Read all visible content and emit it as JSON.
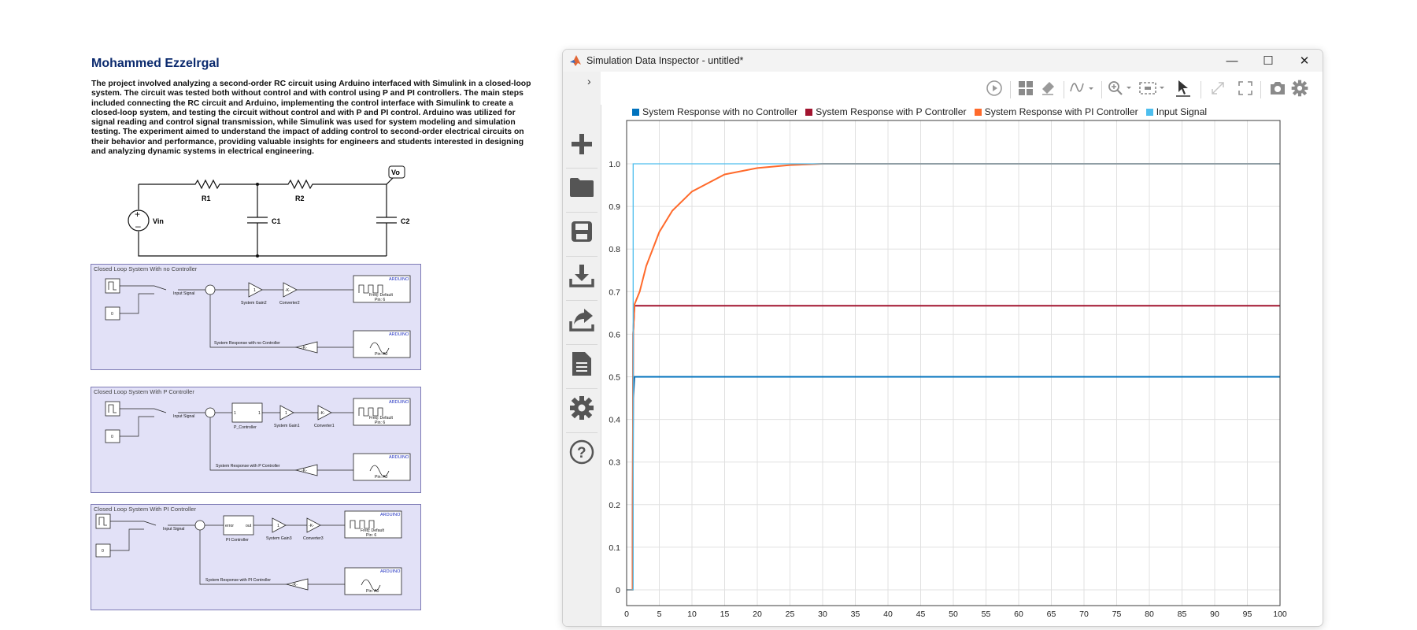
{
  "poster": {
    "author": "Mohammed Ezzelrgal",
    "description": "The project involved analyzing a second-order RC circuit using Arduino interfaced with Simulink in a closed-loop system. The circuit was tested both without control and with control using P and PI controllers. The main steps included connecting the RC circuit and Arduino, implementing the control interface with Simulink to create a closed-loop system, and testing the circuit without control and with P and PI control. Arduino was utilized for signal reading and control signal transmission, while Simulink was used for system modeling and simulation testing. The experiment aimed to understand the impact of adding control to second-order electrical circuits on their behavior and performance, providing valuable insights for engineers and students interested in designing and analyzing dynamic systems in electrical engineering.",
    "circuit": {
      "r1": "R1",
      "r2": "R2",
      "c1": "C1",
      "c2": "C2",
      "source": "Vin",
      "output": "Vo"
    },
    "diagrams": [
      {
        "title": "Closed Loop System With no Controller",
        "const_zero": "0",
        "switch_label": "Input Signal",
        "blocks": [
          {
            "inner": "1",
            "label": "System Gain2"
          },
          {
            "inner": "-K-",
            "label": "Converter2"
          }
        ],
        "pwm": {
          "header": "ARDUINO",
          "line1": "Freq: Default",
          "line2": "Pin: 6"
        },
        "analog": {
          "header": "ARDUINO",
          "pin": "Pin: A0"
        },
        "feedback_label": "System Response with no Controller",
        "feedback_gain": "-K-"
      },
      {
        "title": "Closed Loop System With P Controller",
        "const_zero": "0",
        "switch_label": "Input Signal",
        "controller": {
          "left": "1",
          "right": "1",
          "label": "P_Controller"
        },
        "blocks": [
          {
            "inner": "1",
            "label": "System Gain1"
          },
          {
            "inner": "-K-",
            "label": "Converter1"
          }
        ],
        "pwm": {
          "header": "ARDUINO",
          "line1": "Freq: Default",
          "line2": "Pin: 6"
        },
        "analog": {
          "header": "ARDUINO",
          "pin": "Pin: A0"
        },
        "feedback_label": "System Response with P Controller",
        "feedback_gain": "-K-"
      },
      {
        "title": "Closed Loop System With PI Controller",
        "const_zero": "0",
        "switch_label": "Input Signal",
        "controller": {
          "left": "error",
          "right": "out",
          "label": "PI Controller"
        },
        "blocks": [
          {
            "inner": "1",
            "label": "System Gain3"
          },
          {
            "inner": "-K-",
            "label": "Converter3"
          }
        ],
        "pwm": {
          "header": "ARDUINO",
          "line1": "Freq: Default",
          "line2": "Pin: 6"
        },
        "analog": {
          "header": "ARDUINO",
          "pin": "Pin: A0"
        },
        "feedback_label": "System Response with PI Controller",
        "feedback_gain": "-K-"
      }
    ]
  },
  "window": {
    "title": "Simulation Data Inspector - untitled*",
    "controls": {
      "minimize": "—",
      "maximize": "☐",
      "close": "✕"
    },
    "sidebar": {
      "expand_icon": "chevron-right-icon",
      "buttons": [
        "plus-icon",
        "folder-icon",
        "save-icon",
        "download-icon",
        "share-icon",
        "document-icon",
        "gear-icon",
        "help-icon"
      ]
    },
    "toolbar": [
      "play-icon",
      "layout-grid-icon",
      "eraser-icon",
      "signal-style-icon",
      "zoom-icon",
      "fit-view-icon",
      "cursor-icon",
      "expand-icon",
      "fullscreen-icon",
      "camera-icon",
      "settings-icon"
    ]
  },
  "chart_data": {
    "type": "line",
    "title": "",
    "xlabel": "",
    "ylabel": "",
    "xlim": [
      0,
      100
    ],
    "ylim": [
      0,
      1
    ],
    "grid": true,
    "legend_position": "top",
    "x_ticks": [
      0,
      5,
      10,
      15,
      20,
      25,
      30,
      35,
      40,
      45,
      50,
      55,
      60,
      65,
      70,
      75,
      80,
      85,
      90,
      95,
      100
    ],
    "y_ticks": [
      "0",
      "0.1",
      "0.2",
      "0.3",
      "0.4",
      "0.5",
      "0.6",
      "0.7",
      "0.8",
      "0.9",
      "1.0"
    ],
    "series": [
      {
        "name": "System Response with no Controller",
        "color": "#0072bd",
        "x": [
          0,
          0.9,
          1.0,
          1.2,
          20,
          40,
          60,
          80,
          100
        ],
        "values": [
          0,
          0,
          0.45,
          0.5,
          0.5,
          0.5,
          0.5,
          0.5,
          0.5
        ]
      },
      {
        "name": "System Response with P Controller",
        "color": "#a2142f",
        "x": [
          0,
          0.9,
          1.0,
          1.2,
          20,
          40,
          60,
          80,
          100
        ],
        "values": [
          0,
          0,
          0.6,
          0.667,
          0.667,
          0.667,
          0.667,
          0.667,
          0.667
        ]
      },
      {
        "name": "System Response with PI Controller",
        "color": "#ff6a2b",
        "x": [
          0,
          0.9,
          1.0,
          1.2,
          2,
          3,
          5,
          7,
          10,
          15,
          20,
          25,
          30,
          40,
          60,
          80,
          100
        ],
        "values": [
          0,
          0,
          0.6,
          0.67,
          0.7,
          0.76,
          0.84,
          0.89,
          0.935,
          0.975,
          0.99,
          0.997,
          1.0,
          1.0,
          1.0,
          1.0,
          1.0
        ]
      },
      {
        "name": "Input Signal",
        "color": "#4dbeee",
        "x": [
          0,
          1,
          1,
          100
        ],
        "values": [
          0,
          0,
          1,
          1
        ]
      }
    ]
  }
}
